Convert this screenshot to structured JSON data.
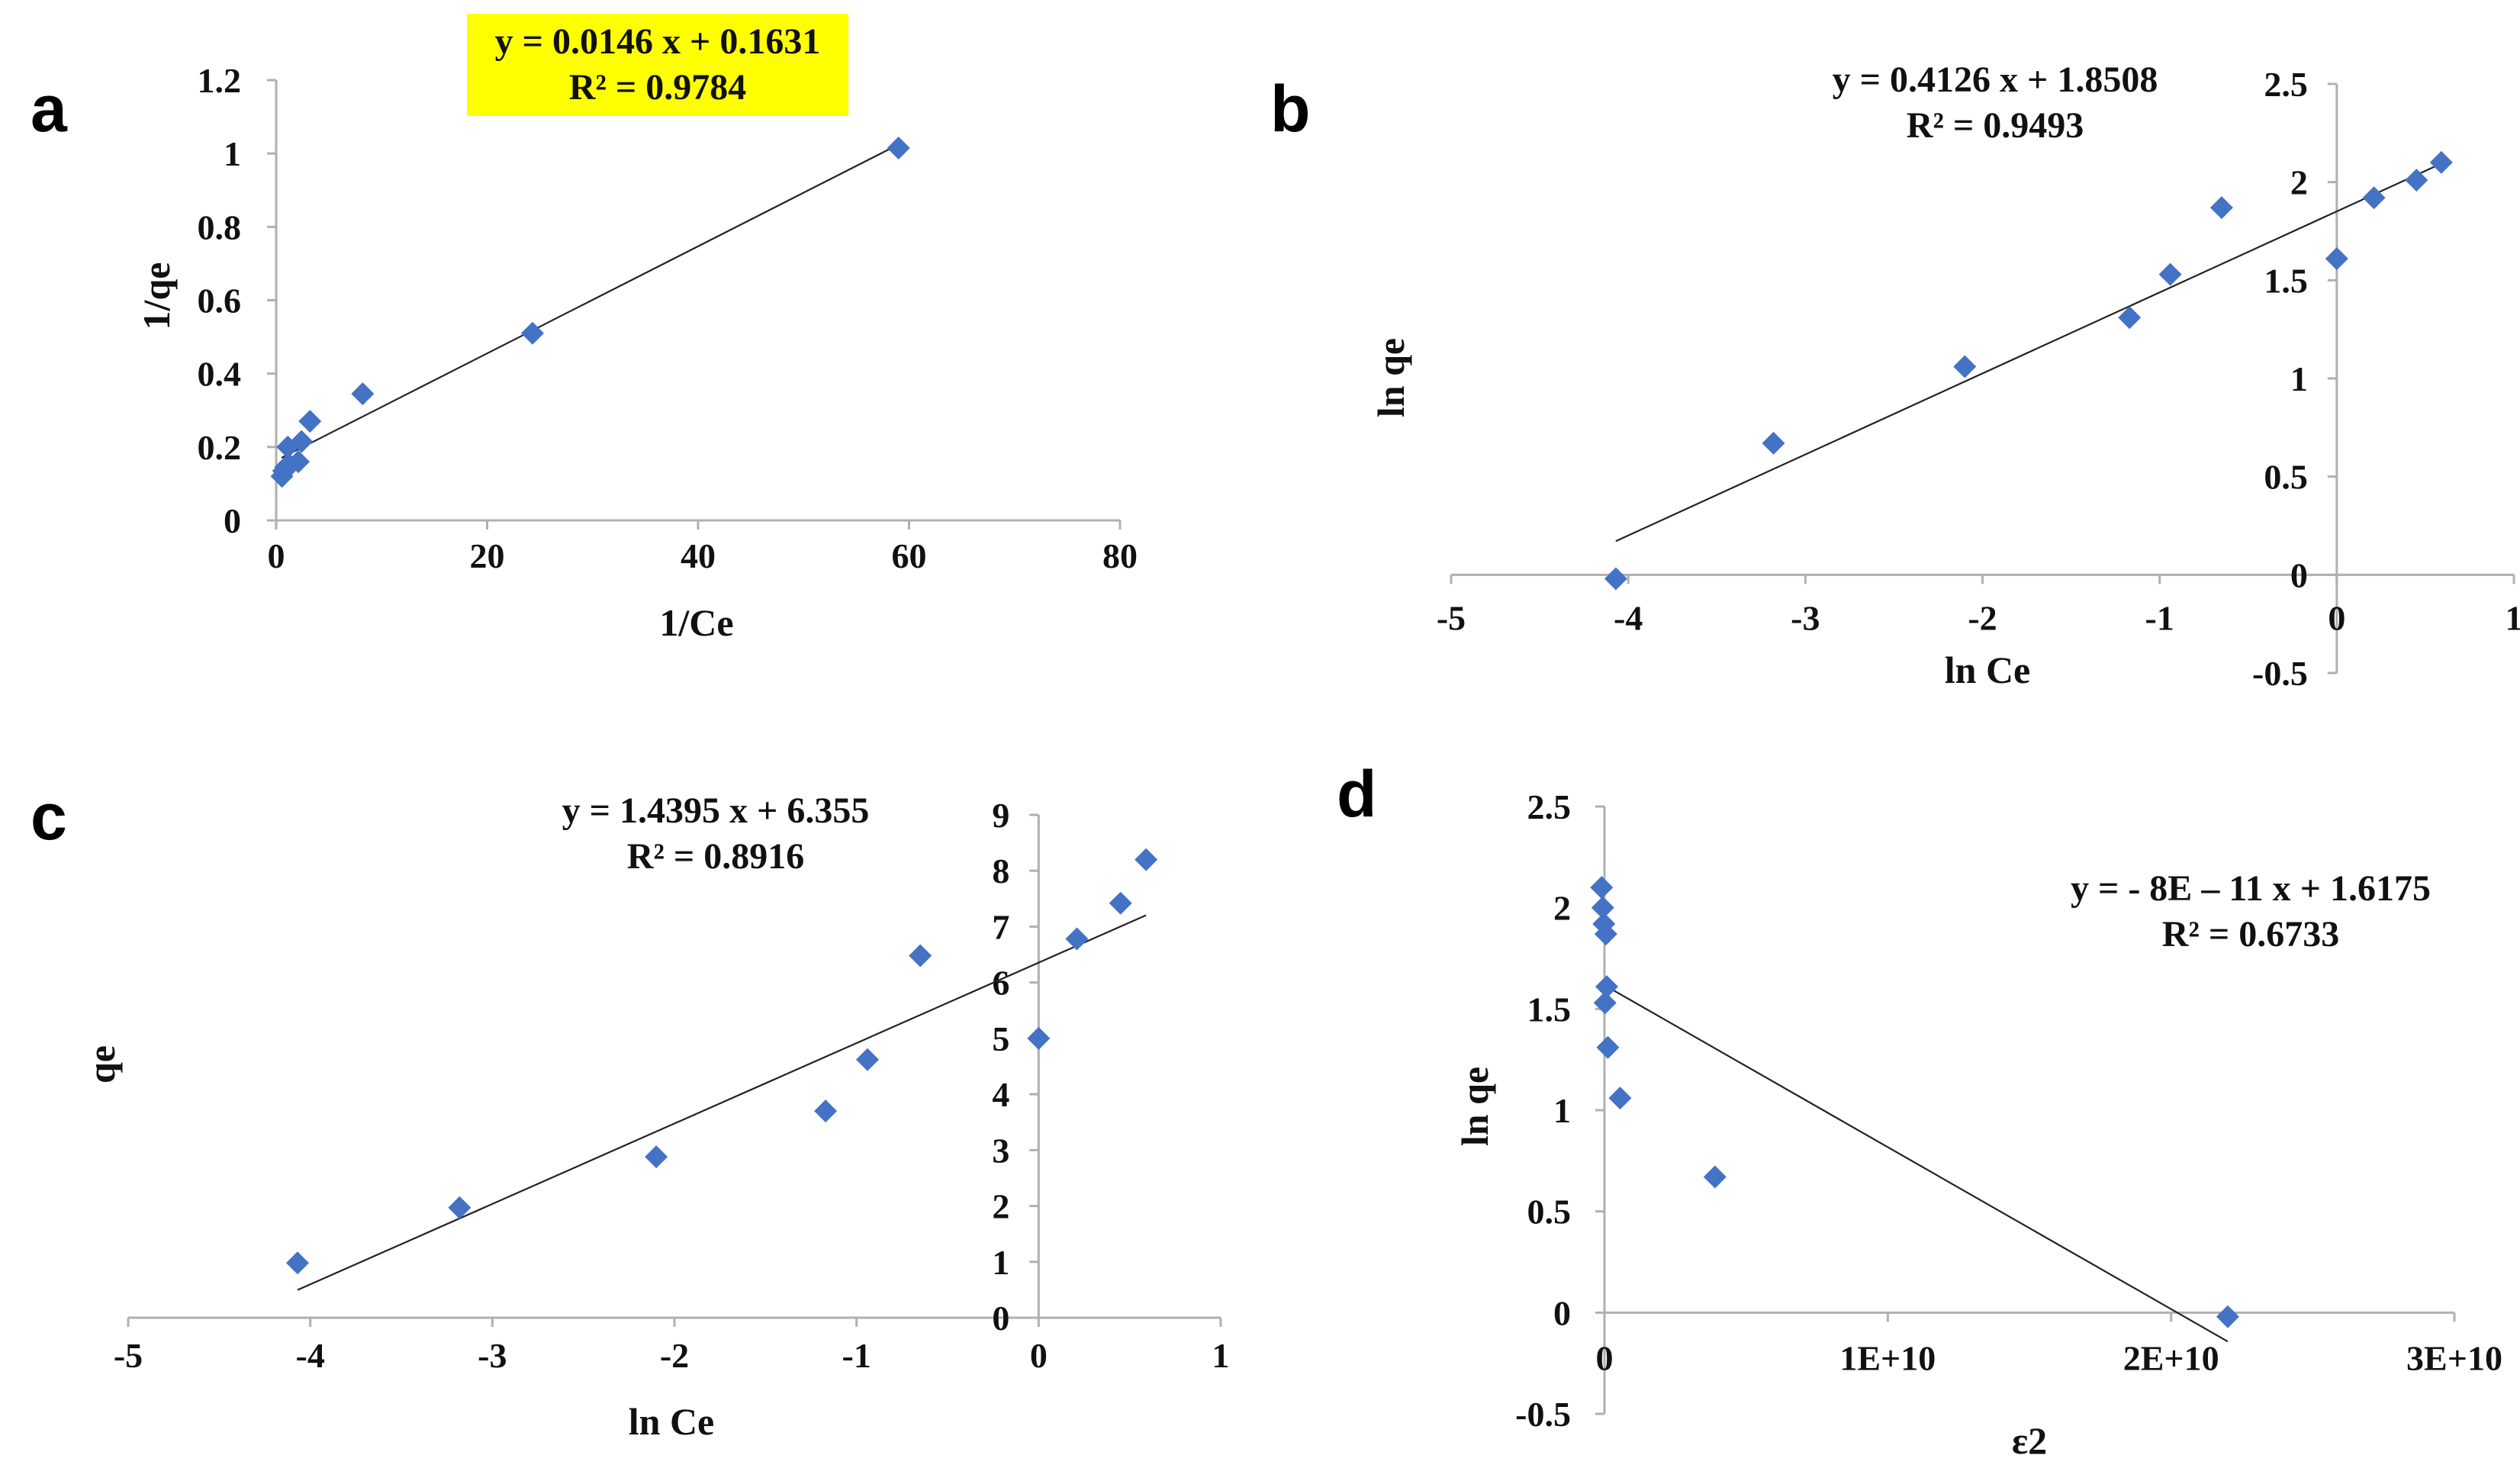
{
  "chart_data": [
    {
      "id": "a",
      "type": "scatter",
      "panel_label": "a",
      "title": "",
      "xlabel": "1/Ce",
      "ylabel": "1/qe",
      "xlim": [
        0,
        80
      ],
      "ylim": [
        0,
        1.2
      ],
      "x_ticks": [
        0,
        20,
        40,
        60,
        80
      ],
      "x_tick_labels": [
        "0",
        "20",
        "40",
        "60",
        "80"
      ],
      "y_ticks": [
        0,
        0.2,
        0.4,
        0.6,
        0.8,
        1,
        1.2
      ],
      "y_tick_labels": [
        "0",
        "0.2",
        "0.4",
        "0.6",
        "0.8",
        "1",
        "1.2"
      ],
      "grid": false,
      "legend": "none",
      "series": [
        {
          "name": "data",
          "points": [
            [
              0.55,
              0.12
            ],
            [
              0.7,
              0.135
            ],
            [
              0.9,
              0.145
            ],
            [
              1.1,
              0.2
            ],
            [
              1.3,
              0.15
            ],
            [
              2.1,
              0.16
            ],
            [
              2.4,
              0.215
            ],
            [
              3.2,
              0.27
            ],
            [
              8.2,
              0.345
            ],
            [
              24.3,
              0.51
            ],
            [
              59.0,
              1.015
            ]
          ]
        }
      ],
      "trendline": {
        "slope": 0.0146,
        "intercept": 0.1631,
        "x_range": [
          0.5,
          59.0
        ]
      },
      "equation": "y = 0.0146 x + 0.1631",
      "r2": "R² = 0.9784",
      "equation_highlight": "#FFFF00"
    },
    {
      "id": "b",
      "type": "scatter",
      "panel_label": "b",
      "title": "",
      "xlabel": "ln Ce",
      "ylabel": "ln qe",
      "xlim": [
        -5,
        1
      ],
      "ylim": [
        -0.5,
        2.5
      ],
      "x_ticks": [
        -5,
        -4,
        -3,
        -2,
        -1,
        0,
        1
      ],
      "x_tick_labels": [
        "-5",
        "-4",
        "-3",
        "-2",
        "-1",
        "0",
        "1"
      ],
      "y_ticks": [
        -0.5,
        0,
        0.5,
        1,
        1.5,
        2,
        2.5
      ],
      "y_tick_labels": [
        "-0.5",
        "0",
        "0.5",
        "1",
        "1.5",
        "2",
        "2.5"
      ],
      "grid": false,
      "legend": "none",
      "series": [
        {
          "name": "data",
          "points": [
            [
              -4.07,
              -0.02
            ],
            [
              -3.18,
              0.67
            ],
            [
              -2.1,
              1.06
            ],
            [
              -1.17,
              1.31
            ],
            [
              -0.94,
              1.53
            ],
            [
              -0.65,
              1.87
            ],
            [
              0,
              1.61
            ],
            [
              0.21,
              1.92
            ],
            [
              0.45,
              2.01
            ],
            [
              0.59,
              2.1
            ]
          ]
        }
      ],
      "trendline": {
        "slope": 0.4126,
        "intercept": 1.8508,
        "x_range": [
          -4.07,
          0.59
        ]
      },
      "equation": "y = 0.4126 x + 1.8508",
      "r2": "R² = 0.9493"
    },
    {
      "id": "c",
      "type": "scatter",
      "panel_label": "c",
      "title": "",
      "xlabel": "ln Ce",
      "ylabel": "qe",
      "xlim": [
        -5,
        1
      ],
      "ylim": [
        0,
        9
      ],
      "x_ticks": [
        -5,
        -4,
        -3,
        -2,
        -1,
        0,
        1
      ],
      "x_tick_labels": [
        "-5",
        "-4",
        "-3",
        "-2",
        "-1",
        "0",
        "1"
      ],
      "y_ticks": [
        0,
        1,
        2,
        3,
        4,
        5,
        6,
        7,
        8,
        9
      ],
      "y_tick_labels": [
        "0",
        "1",
        "2",
        "3",
        "4",
        "5",
        "6",
        "7",
        "8",
        "9"
      ],
      "grid": false,
      "legend": "none",
      "series": [
        {
          "name": "data",
          "points": [
            [
              -4.07,
              0.98
            ],
            [
              -3.18,
              1.97
            ],
            [
              -2.1,
              2.88
            ],
            [
              -1.17,
              3.7
            ],
            [
              -0.94,
              4.62
            ],
            [
              -0.65,
              6.48
            ],
            [
              0,
              5.0
            ],
            [
              0.21,
              6.78
            ],
            [
              0.45,
              7.42
            ],
            [
              0.59,
              8.2
            ]
          ]
        }
      ],
      "trendline": {
        "slope": 1.4395,
        "intercept": 6.355,
        "x_range": [
          -4.07,
          0.59
        ]
      },
      "equation": "y = 1.4395 x + 6.355",
      "r2": "R² = 0.8916"
    },
    {
      "id": "d",
      "type": "scatter",
      "panel_label": "d",
      "title": "",
      "xlabel": "ε2",
      "ylabel": "ln qe",
      "xlim": [
        0,
        30000000000
      ],
      "ylim": [
        -0.5,
        2.5
      ],
      "x_ticks": [
        0,
        10000000000,
        20000000000,
        30000000000
      ],
      "x_tick_labels": [
        "0",
        "1E+10",
        "2E+10",
        "3E+10"
      ],
      "y_ticks": [
        -0.5,
        0,
        0.5,
        1,
        1.5,
        2,
        2.5
      ],
      "y_tick_labels": [
        "-0.5",
        "0",
        "0.5",
        "1",
        "1.5",
        "2",
        "2.5"
      ],
      "grid": false,
      "legend": "none",
      "series": [
        {
          "name": "data",
          "points": [
            [
              -100000000,
              2.1
            ],
            [
              -60000000,
              2.0
            ],
            [
              -20000000,
              1.92
            ],
            [
              50000000,
              1.87
            ],
            [
              80000000,
              1.61
            ],
            [
              20000000,
              1.53
            ],
            [
              120000000,
              1.31
            ],
            [
              550000000,
              1.06
            ],
            [
              3900000000,
              0.67
            ],
            [
              22000000000,
              -0.02
            ]
          ]
        }
      ],
      "trendline": {
        "slope": -8e-11,
        "intercept": 1.6175,
        "x_range": [
          0,
          22000000000
        ]
      },
      "equation": "y = - 8E – 11 x + 1.6175",
      "r2": "R² = 0.6733"
    }
  ]
}
